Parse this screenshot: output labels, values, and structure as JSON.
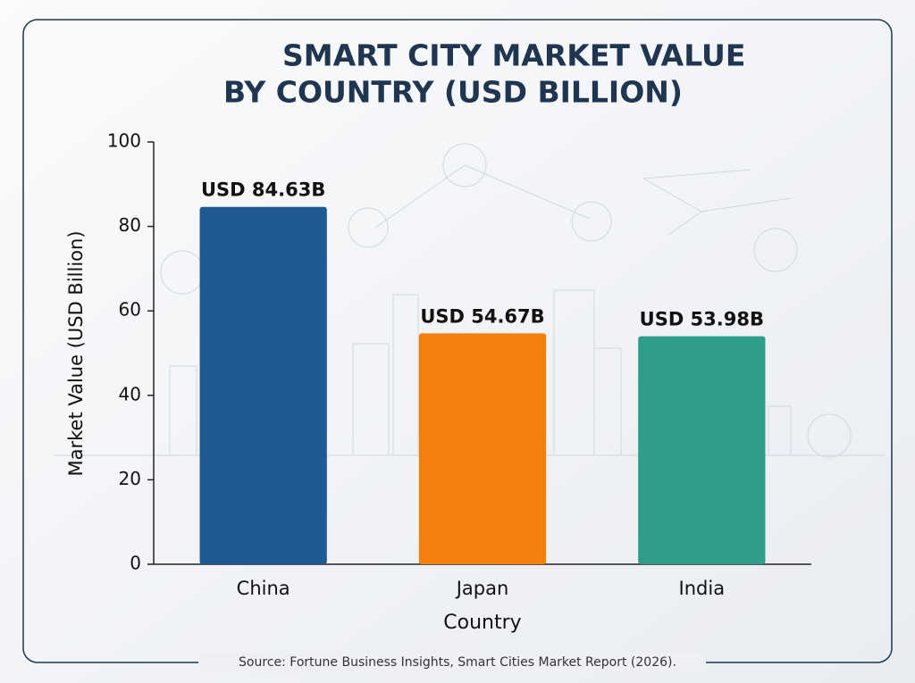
{
  "chart_data": {
    "type": "bar",
    "title": [
      "SMART CITY MARKET VALUE",
      "BY COUNTRY (USD BILLION)"
    ],
    "categories": [
      "China",
      "Japan",
      "India"
    ],
    "values": [
      84.63,
      54.67,
      53.98
    ],
    "value_labels": [
      "USD 84.63B",
      "USD 54.67B",
      "USD 53.98B"
    ],
    "colors": [
      "#1f5a94",
      "#f57f0c",
      "#2e9e8a"
    ],
    "xlabel": "Country",
    "ylabel": "Market Value (USD Billion)",
    "ylim": [
      0,
      100
    ],
    "yticks": [
      0,
      20,
      40,
      60,
      80,
      100
    ],
    "source": "Source: Fortune Business Insights, Smart Cities Market Report (2026)."
  }
}
